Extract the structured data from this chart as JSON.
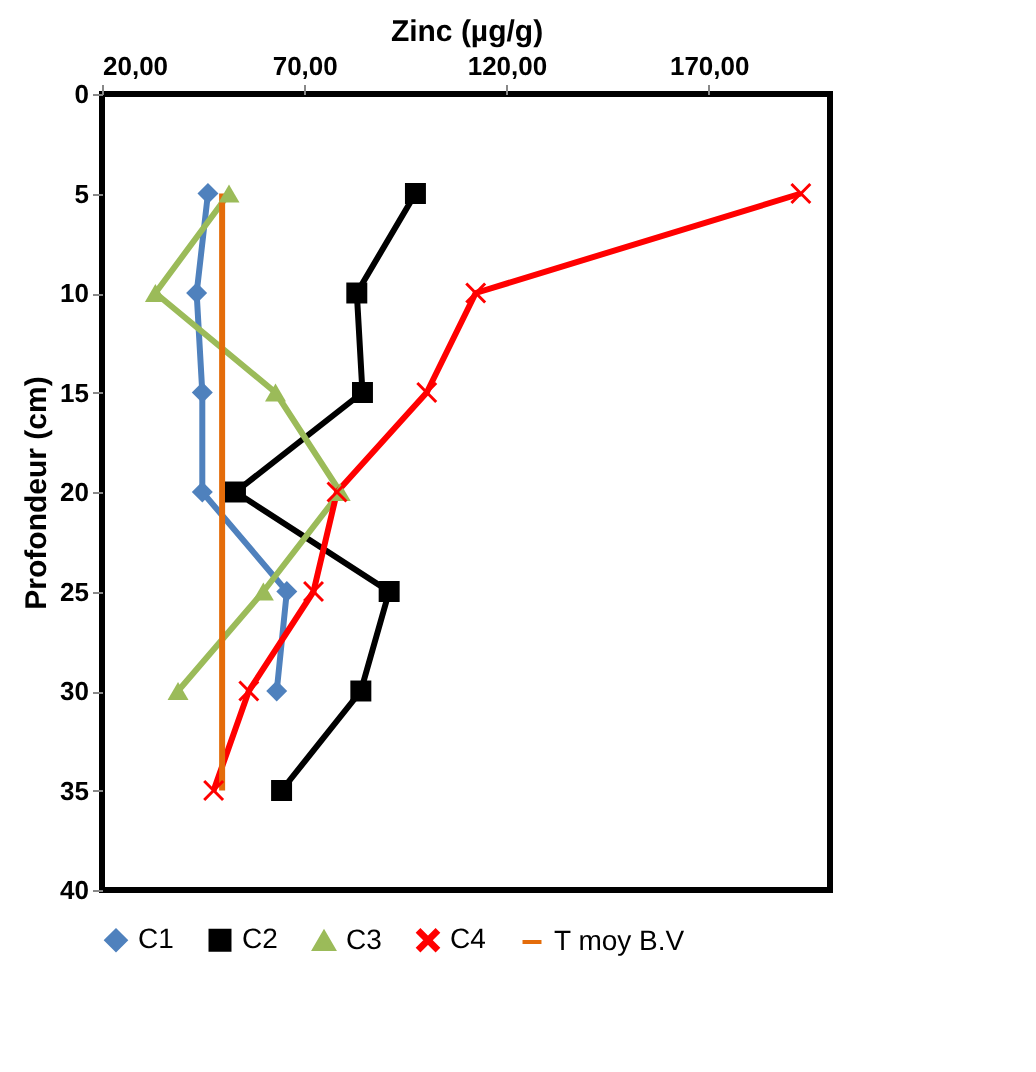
{
  "chart_data": {
    "type": "line",
    "xlabel": "Zinc (µg/g)",
    "ylabel": "Profondeur (cm)",
    "xlim": [
      20,
      200
    ],
    "xticks": [
      {
        "value": 20,
        "label": "20,00"
      },
      {
        "value": 70,
        "label": "70,00"
      },
      {
        "value": 120,
        "label": "120,00"
      },
      {
        "value": 170,
        "label": "170,00"
      }
    ],
    "ylim": [
      40,
      0
    ],
    "yticks": [
      0,
      5,
      10,
      15,
      20,
      25,
      30,
      35,
      40
    ],
    "grid": false,
    "legend": "bottom",
    "line_style": "solid",
    "series": [
      {
        "name": "C1",
        "color": "#4f81bd",
        "marker": "diamond",
        "x": [
          46.2,
          43.4,
          44.8,
          44.8,
          65.7,
          63.2
        ],
        "values": [
          5,
          10,
          15,
          20,
          25,
          30
        ]
      },
      {
        "name": "C2",
        "color": "#000000",
        "marker": "square",
        "x": [
          97.5,
          83,
          84.4,
          53,
          91,
          84,
          64.4
        ],
        "values": [
          5,
          10,
          15,
          20,
          25,
          30,
          35
        ]
      },
      {
        "name": "C3",
        "color": "#9bbb59",
        "marker": "triangle",
        "x": [
          51.4,
          33.2,
          62.9,
          78.9,
          59.9,
          38.8
        ],
        "values": [
          5,
          10,
          15,
          20,
          25,
          30
        ]
      },
      {
        "name": "C4",
        "color": "#ff0000",
        "marker": "cross",
        "x": [
          192.8,
          112.4,
          100.3,
          78.1,
          72.3,
          56.3,
          47.6
        ],
        "values": [
          5,
          10,
          15,
          20,
          25,
          30,
          35
        ]
      },
      {
        "name": "T moy B.V",
        "color": "#e46c0a",
        "marker": "none",
        "x": [
          49.7,
          49.7
        ],
        "values": [
          5,
          35
        ]
      }
    ]
  }
}
